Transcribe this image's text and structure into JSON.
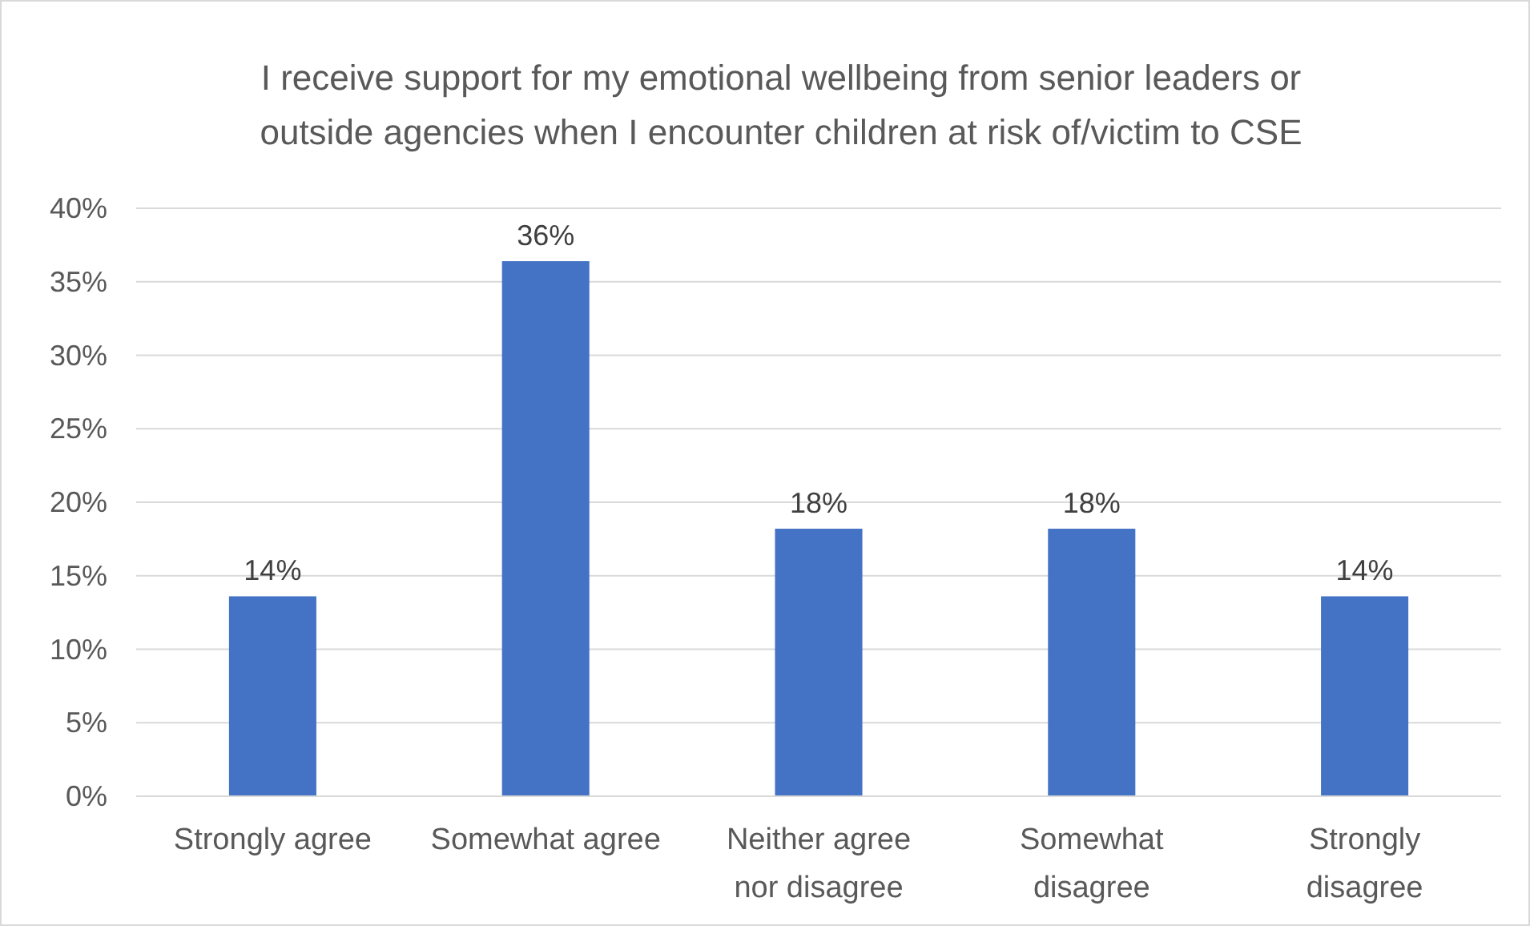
{
  "chart_data": {
    "type": "bar",
    "title": "I receive support for my emotional wellbeing from senior leaders or outside agencies when I encounter children at risk of/victim to CSE",
    "categories": [
      "Strongly agree",
      "Somewhat agree",
      "Neither agree nor disagree",
      "Somewhat disagree",
      "Strongly disagree"
    ],
    "values": [
      13.6,
      36.4,
      18.2,
      18.2,
      13.6
    ],
    "value_labels": [
      "14%",
      "36%",
      "18%",
      "18%",
      "14%"
    ],
    "color": "#4472c4",
    "ylim": [
      0,
      40
    ],
    "yticks": [
      {
        "value": 0,
        "label": "0%"
      },
      {
        "value": 5,
        "label": "5%"
      },
      {
        "value": 10,
        "label": "10%"
      },
      {
        "value": 15,
        "label": "15%"
      },
      {
        "value": 20,
        "label": "20%"
      },
      {
        "value": 25,
        "label": "25%"
      },
      {
        "value": 30,
        "label": "30%"
      },
      {
        "value": 35,
        "label": "35%"
      },
      {
        "value": 40,
        "label": "40%"
      }
    ],
    "grid": "y"
  }
}
